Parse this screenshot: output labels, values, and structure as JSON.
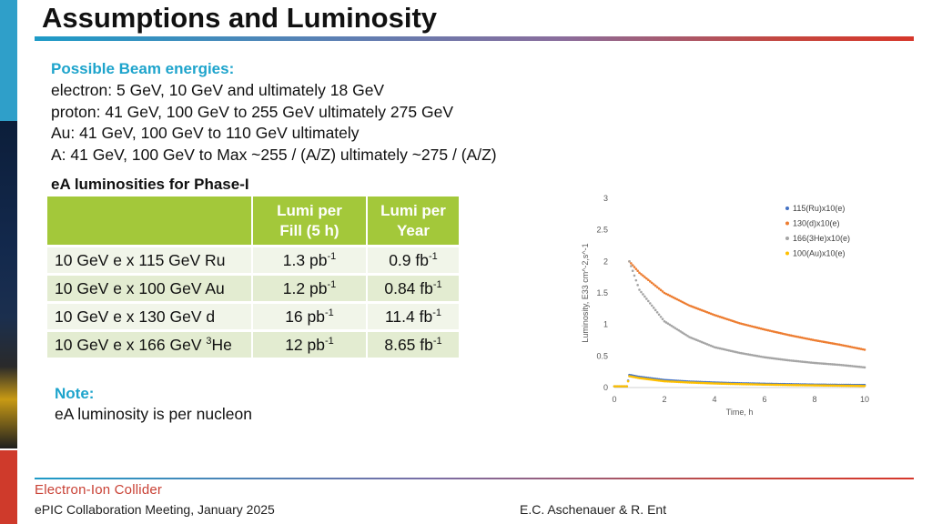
{
  "title": "Assumptions and Luminosity",
  "energies": {
    "heading": "Possible Beam energies:",
    "lines": [
      "electron: 5 GeV, 10 GeV and ultimately 18 GeV",
      "proton: 41 GeV, 100 GeV to 255 GeV ultimately 275 GeV",
      "Au: 41 GeV, 100 GeV to 110 GeV ultimately",
      "A: 41 GeV, 100 GeV to Max ~255 / (A/Z) ultimately ~275 / (A/Z)"
    ]
  },
  "table": {
    "heading": "eA luminosities for Phase-I",
    "col2_header_line1": "Lumi per",
    "col2_header_line2": "Fill (5 h)",
    "col3_header_line1": "Lumi per",
    "col3_header_line2": "Year",
    "rows": [
      {
        "label": "10 GeV e x 115 GeV Ru",
        "label_sup": "",
        "label_tail": "",
        "fill": "1.3 pb",
        "fill_sup": "-1",
        "year": "0.9 fb",
        "year_sup": "-1"
      },
      {
        "label": "10 GeV e x 100 GeV Au",
        "label_sup": "",
        "label_tail": "",
        "fill": "1.2 pb",
        "fill_sup": "-1",
        "year": "0.84 fb",
        "year_sup": "-1"
      },
      {
        "label": "10 GeV e x 130 GeV d",
        "label_sup": "",
        "label_tail": "",
        "fill": "16 pb",
        "fill_sup": "-1",
        "year": "11.4 fb",
        "year_sup": "-1"
      },
      {
        "label": "10 GeV e x 166 GeV ",
        "label_sup": "3",
        "label_tail": "He",
        "fill": "12 pb",
        "fill_sup": "-1",
        "year": "8.65 fb",
        "year_sup": "-1"
      }
    ]
  },
  "note": {
    "heading": "Note:",
    "text": "eA luminosity is per nucleon"
  },
  "footer": {
    "logo": "Electron-Ion Collider",
    "left": "ePIC Collaboration Meeting, January 2025",
    "right": "E.C. Aschenauer & R. Ent"
  },
  "chart_data": {
    "type": "scatter",
    "xlabel": "Time, h",
    "ylabel": "Luminosity, E33 cm^-2,s^-1",
    "xlim": [
      0,
      10
    ],
    "ylim": [
      0,
      3
    ],
    "xticks": [
      "0",
      "2",
      "4",
      "6",
      "8",
      "10"
    ],
    "yticks": [
      "0",
      "0.5",
      "1",
      "1.5",
      "2",
      "2.5",
      "3"
    ],
    "legend_position": "top-right",
    "grid": false,
    "series": [
      {
        "name": "115(Ru)x10(e)",
        "color": "#4472c4",
        "x": [
          0,
          0.5,
          0.6,
          1,
          2,
          3,
          4,
          5,
          6,
          7,
          8,
          9,
          10
        ],
        "y": [
          0.02,
          0.02,
          0.2,
          0.17,
          0.12,
          0.095,
          0.08,
          0.068,
          0.06,
          0.053,
          0.047,
          0.043,
          0.04
        ]
      },
      {
        "name": "130(d)x10(e)",
        "color": "#ed7d31",
        "x": [
          0.6,
          1,
          2,
          3,
          4,
          5,
          6,
          7,
          8,
          9,
          10
        ],
        "y": [
          2.0,
          1.82,
          1.5,
          1.3,
          1.15,
          1.02,
          0.92,
          0.83,
          0.75,
          0.68,
          0.6
        ]
      },
      {
        "name": "166(3He)x10(e)",
        "color": "#a5a5a5",
        "x": [
          0.6,
          1,
          2,
          3,
          4,
          5,
          6,
          7,
          8,
          9,
          10
        ],
        "y": [
          2.0,
          1.55,
          1.05,
          0.8,
          0.64,
          0.55,
          0.48,
          0.43,
          0.39,
          0.36,
          0.32
        ]
      },
      {
        "name": "100(Au)x10(e)",
        "color": "#ffc000",
        "x": [
          0,
          0.5,
          0.6,
          1,
          2,
          3,
          4,
          5,
          6,
          7,
          8,
          9,
          10
        ],
        "y": [
          0.02,
          0.02,
          0.18,
          0.15,
          0.1,
          0.08,
          0.065,
          0.055,
          0.047,
          0.04,
          0.035,
          0.03,
          0.025
        ]
      }
    ]
  }
}
